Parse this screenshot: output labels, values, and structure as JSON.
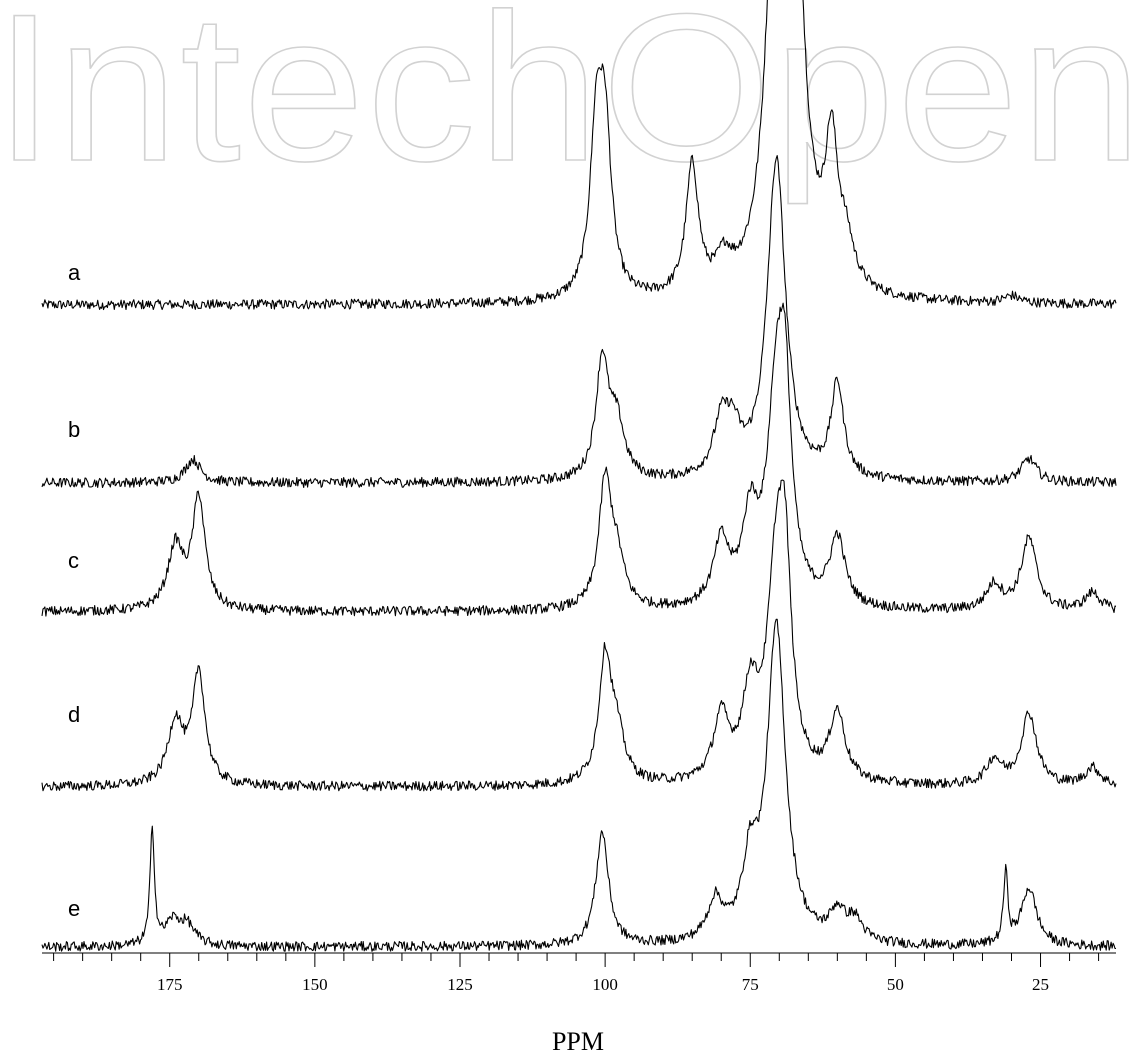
{
  "watermark": "IntechOpen",
  "chart_data": {
    "type": "line",
    "title": "",
    "xlabel": "PPM",
    "ylabel": "",
    "xlim": [
      197,
      12
    ],
    "x_reversed": true,
    "x_ticks": [
      175,
      150,
      125,
      100,
      75,
      50,
      25
    ],
    "minor_tick_step": 5,
    "grid": false,
    "legend": "labels beside each trace",
    "series": [
      {
        "name": "a",
        "peaks": [
          [
            101.5,
            0.88
          ],
          [
            100.0,
            0.85
          ],
          [
            85.0,
            0.72
          ],
          [
            79.5,
            0.16
          ],
          [
            71.0,
            1.45
          ],
          [
            68.8,
            1.35
          ],
          [
            67.3,
            1.62
          ],
          [
            61.0,
            0.75
          ],
          [
            58.5,
            0.22
          ],
          [
            30.0,
            0.04
          ]
        ]
      },
      {
        "name": "b",
        "peaks": [
          [
            171.0,
            0.13
          ],
          [
            100.5,
            0.65
          ],
          [
            98.0,
            0.3
          ],
          [
            80.0,
            0.28
          ],
          [
            78.0,
            0.22
          ],
          [
            70.5,
            1.78
          ],
          [
            60.0,
            0.52
          ],
          [
            27.0,
            0.13
          ]
        ]
      },
      {
        "name": "c",
        "peaks": [
          [
            174.0,
            0.35
          ],
          [
            170.0,
            0.62
          ],
          [
            100.0,
            0.68
          ],
          [
            98.0,
            0.25
          ],
          [
            80.0,
            0.35
          ],
          [
            75.0,
            0.45
          ],
          [
            70.5,
            1.1
          ],
          [
            69.0,
            0.9
          ],
          [
            60.0,
            0.38
          ],
          [
            33.0,
            0.14
          ],
          [
            27.0,
            0.4
          ],
          [
            16.0,
            0.1
          ]
        ]
      },
      {
        "name": "d",
        "peaks": [
          [
            174.0,
            0.35
          ],
          [
            170.0,
            0.62
          ],
          [
            100.0,
            0.68
          ],
          [
            98.0,
            0.25
          ],
          [
            80.0,
            0.35
          ],
          [
            75.0,
            0.45
          ],
          [
            70.5,
            1.1
          ],
          [
            69.0,
            0.9
          ],
          [
            60.0,
            0.38
          ],
          [
            33.0,
            0.14
          ],
          [
            27.0,
            0.4
          ],
          [
            16.0,
            0.1
          ]
        ]
      },
      {
        "name": "e",
        "peaks": [
          [
            178.0,
            0.65
          ],
          [
            174.5,
            0.13
          ],
          [
            172.0,
            0.11
          ],
          [
            100.5,
            0.63
          ],
          [
            81.0,
            0.22
          ],
          [
            75.0,
            0.4
          ],
          [
            70.5,
            1.75
          ],
          [
            60.0,
            0.16
          ],
          [
            57.0,
            0.12
          ],
          [
            31.0,
            0.39
          ],
          [
            27.0,
            0.32
          ]
        ]
      }
    ]
  }
}
